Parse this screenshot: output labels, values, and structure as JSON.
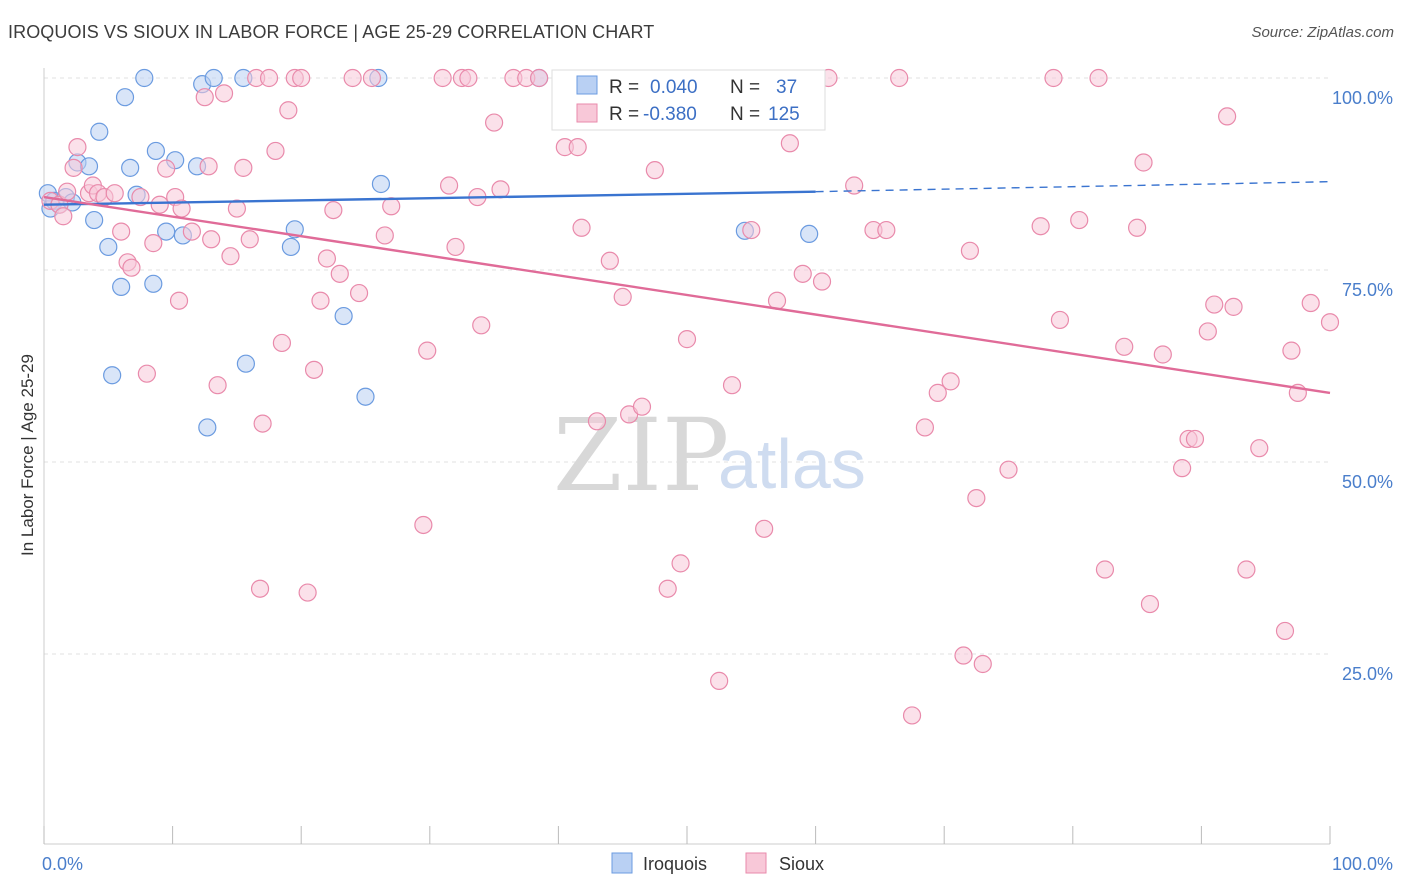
{
  "title": "IROQUOIS VS SIOUX IN LABOR FORCE | AGE 25-29 CORRELATION CHART",
  "source": "Source: ZipAtlas.com",
  "watermark": {
    "zip": "ZIP",
    "atlas": "atlas"
  },
  "chart_data": {
    "type": "scatter",
    "xlabel": "",
    "ylabel": "In Labor Force | Age 25-29",
    "xlim": [
      0,
      100
    ],
    "ylim": [
      0,
      105
    ],
    "x_tick_labels": [
      "0.0%",
      "100.0%"
    ],
    "y_ticks": [
      25,
      50,
      75,
      100
    ],
    "y_tick_labels": [
      "25.0%",
      "50.0%",
      "75.0%",
      "100.0%"
    ],
    "grid": true,
    "legend_position": "top-center",
    "legend": [
      {
        "r_label": "R =",
        "r_value": "0.040",
        "n_label": "N =",
        "n_value": "37"
      },
      {
        "r_label": "R =",
        "r_value": "-0.380",
        "n_label": "N =",
        "n_value": "125"
      }
    ],
    "series": [
      {
        "name": "Iroquois",
        "color": "#6b9be0",
        "fill": "#b9d0f3",
        "trend": {
          "x": [
            0,
            60
          ],
          "y": [
            83.5,
            85.2
          ],
          "dashed_to": [
            100,
            86.5
          ],
          "color": "#3a74d0"
        },
        "points": [
          [
            0.3,
            85
          ],
          [
            0.5,
            83
          ],
          [
            0.8,
            84
          ],
          [
            1.2,
            83.5
          ],
          [
            1.7,
            84.5
          ],
          [
            2.2,
            83.8
          ],
          [
            2.6,
            89
          ],
          [
            3.5,
            88.5
          ],
          [
            3.9,
            81.5
          ],
          [
            4.3,
            93
          ],
          [
            5,
            78
          ],
          [
            6,
            72.8
          ],
          [
            6.3,
            97.5
          ],
          [
            6.7,
            88.3
          ],
          [
            7.2,
            84.8
          ],
          [
            7.8,
            100
          ],
          [
            8.5,
            73.2
          ],
          [
            8.7,
            90.5
          ],
          [
            9.5,
            80
          ],
          [
            10.2,
            89.3
          ],
          [
            10.8,
            79.5
          ],
          [
            11.9,
            88.5
          ],
          [
            12.3,
            99.2
          ],
          [
            13.2,
            100
          ],
          [
            5.3,
            61.3
          ],
          [
            12.7,
            54.5
          ],
          [
            15.5,
            100
          ],
          [
            15.7,
            62.8
          ],
          [
            19.2,
            78
          ],
          [
            19.5,
            80.3
          ],
          [
            23.3,
            69
          ],
          [
            25,
            58.5
          ],
          [
            26,
            100
          ],
          [
            26.2,
            86.2
          ],
          [
            38.5,
            100
          ],
          [
            54.5,
            80.1
          ],
          [
            59.5,
            79.7
          ]
        ]
      },
      {
        "name": "Sioux",
        "color": "#e98aab",
        "fill": "#f8c8d8",
        "trend": {
          "x": [
            0,
            100
          ],
          "y": [
            84.5,
            59
          ],
          "color": "#e06b98"
        },
        "points": [
          [
            0.5,
            84
          ],
          [
            1.2,
            83.5
          ],
          [
            1.8,
            85.2
          ],
          [
            2.3,
            88.3
          ],
          [
            2.6,
            91
          ],
          [
            3.5,
            85
          ],
          [
            3.8,
            86
          ],
          [
            4.2,
            85
          ],
          [
            4.7,
            84.5
          ],
          [
            5.5,
            85
          ],
          [
            6,
            80
          ],
          [
            6.5,
            76
          ],
          [
            6.8,
            75.3
          ],
          [
            7.5,
            84.5
          ],
          [
            8,
            61.5
          ],
          [
            8.5,
            78.5
          ],
          [
            9,
            83.5
          ],
          [
            9.5,
            88.2
          ],
          [
            10.2,
            84.5
          ],
          [
            10.5,
            71
          ],
          [
            10.7,
            83
          ],
          [
            11.5,
            80
          ],
          [
            12.5,
            97.5
          ],
          [
            12.8,
            88.5
          ],
          [
            13,
            79
          ],
          [
            13.5,
            60
          ],
          [
            14,
            98
          ],
          [
            14.5,
            76.8
          ],
          [
            15,
            83
          ],
          [
            15.5,
            88.3
          ],
          [
            16,
            79
          ],
          [
            16.5,
            100
          ],
          [
            16.8,
            33.5
          ],
          [
            17,
            55
          ],
          [
            17.5,
            100
          ],
          [
            18,
            90.5
          ],
          [
            18.5,
            65.5
          ],
          [
            19,
            95.8
          ],
          [
            19.5,
            100
          ],
          [
            20,
            100
          ],
          [
            20.5,
            33
          ],
          [
            21,
            62
          ],
          [
            21.5,
            71
          ],
          [
            22,
            76.5
          ],
          [
            22.5,
            82.8
          ],
          [
            23,
            74.5
          ],
          [
            24,
            100
          ],
          [
            24.5,
            72
          ],
          [
            25.5,
            100
          ],
          [
            26.5,
            79.5
          ],
          [
            27,
            83.3
          ],
          [
            29.5,
            41.8
          ],
          [
            29.8,
            64.5
          ],
          [
            31,
            100
          ],
          [
            31.5,
            86
          ],
          [
            32,
            78
          ],
          [
            32.5,
            100
          ],
          [
            33,
            100
          ],
          [
            33.7,
            84.5
          ],
          [
            34,
            67.8
          ],
          [
            35,
            94.2
          ],
          [
            35.5,
            85.5
          ],
          [
            36.5,
            100
          ],
          [
            37.5,
            100
          ],
          [
            38.5,
            100
          ],
          [
            40.5,
            91
          ],
          [
            41.5,
            91
          ],
          [
            41.8,
            80.5
          ],
          [
            43,
            55.3
          ],
          [
            44,
            76.2
          ],
          [
            45,
            71.5
          ],
          [
            45.5,
            56.2
          ],
          [
            46.5,
            57.2
          ],
          [
            47.5,
            88
          ],
          [
            48.5,
            33.5
          ],
          [
            49.5,
            36.8
          ],
          [
            50,
            66
          ],
          [
            52.5,
            21.5
          ],
          [
            53.5,
            60
          ],
          [
            55,
            80.2
          ],
          [
            56,
            41.3
          ],
          [
            57,
            71
          ],
          [
            58,
            91.5
          ],
          [
            59,
            74.5
          ],
          [
            60.5,
            73.5
          ],
          [
            61,
            100
          ],
          [
            63,
            86
          ],
          [
            64.5,
            80.2
          ],
          [
            65.5,
            80.2
          ],
          [
            66.5,
            100
          ],
          [
            67.5,
            17
          ],
          [
            68.5,
            54.5
          ],
          [
            69.5,
            59
          ],
          [
            70.5,
            60.5
          ],
          [
            71.5,
            24.8
          ],
          [
            72,
            77.5
          ],
          [
            72.5,
            45.3
          ],
          [
            73,
            23.7
          ],
          [
            75,
            49
          ],
          [
            77.5,
            80.7
          ],
          [
            78.5,
            100
          ],
          [
            79,
            68.5
          ],
          [
            80.5,
            81.5
          ],
          [
            82,
            100
          ],
          [
            82.5,
            36
          ],
          [
            84,
            65
          ],
          [
            85.5,
            89
          ],
          [
            85,
            80.5
          ],
          [
            86,
            31.5
          ],
          [
            87,
            64
          ],
          [
            88.5,
            49.2
          ],
          [
            89,
            53
          ],
          [
            89.5,
            53
          ],
          [
            90.5,
            67
          ],
          [
            91,
            70.5
          ],
          [
            92,
            95
          ],
          [
            92.5,
            70.2
          ],
          [
            93.5,
            36
          ],
          [
            94.5,
            51.8
          ],
          [
            96.5,
            28
          ],
          [
            97,
            64.5
          ],
          [
            97.5,
            59
          ],
          [
            98.5,
            70.7
          ],
          [
            100,
            68.2
          ],
          [
            1.5,
            82
          ]
        ]
      }
    ]
  },
  "bottom_legend": [
    {
      "label": "Iroquois",
      "color": "#b9d0f3",
      "border": "#6b9be0"
    },
    {
      "label": "Sioux",
      "color": "#f8c8d8",
      "border": "#e98aab"
    }
  ]
}
